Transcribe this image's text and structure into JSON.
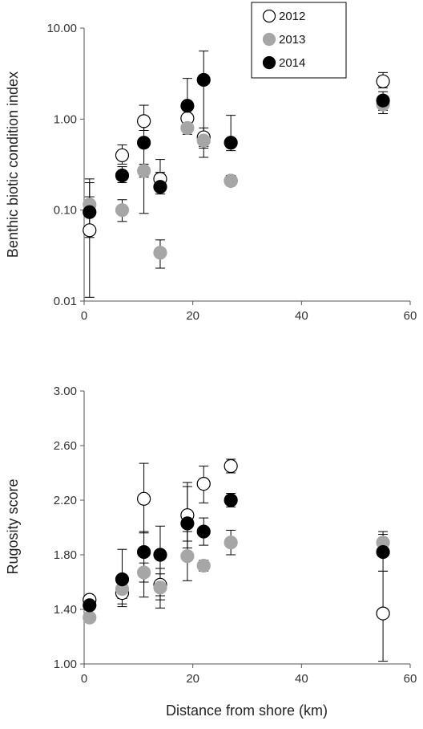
{
  "chart_data": [
    {
      "type": "scatter",
      "title": "",
      "xlabel": "",
      "ylabel": "Benthic biotic condition index",
      "xlim": [
        0,
        60
      ],
      "ylim": [
        0.01,
        10
      ],
      "yscale": "log",
      "xticks": [
        "0",
        "20",
        "40",
        "60"
      ],
      "yticks": [
        "0.01",
        "0.10",
        "1.00",
        "10.00"
      ],
      "legend": {
        "position": "top-right",
        "entries": [
          "2012",
          "2013",
          "2014"
        ]
      },
      "series": [
        {
          "name": "2012",
          "color": "#ffffff",
          "points": [
            {
              "x": 1,
              "y": 0.06,
              "lo": 0.011,
              "hi": 0.22
            },
            {
              "x": 7,
              "y": 0.4,
              "lo": 0.32,
              "hi": 0.52
            },
            {
              "x": 11,
              "y": 0.95,
              "lo": 0.75,
              "hi": 1.42
            },
            {
              "x": 14,
              "y": 0.22,
              "lo": 0.19,
              "hi": 0.26
            },
            {
              "x": 19,
              "y": 1.02,
              "lo": 0.82,
              "hi": 1.25
            },
            {
              "x": 22,
              "y": 0.63,
              "lo": 0.5,
              "hi": 0.8
            },
            {
              "x": 27,
              "y": 0.21,
              "lo": 0.19,
              "hi": 0.24
            },
            {
              "x": 55,
              "y": 2.6,
              "lo": 2.2,
              "hi": 3.25
            }
          ]
        },
        {
          "name": "2013",
          "color": "#a6a6a6",
          "points": [
            {
              "x": 1,
              "y": 0.115,
              "lo": 0.095,
              "hi": 0.14
            },
            {
              "x": 7,
              "y": 0.1,
              "lo": 0.075,
              "hi": 0.13
            },
            {
              "x": 11,
              "y": 0.27,
              "lo": 0.23,
              "hi": 0.32
            },
            {
              "x": 14,
              "y": 0.034,
              "lo": 0.023,
              "hi": 0.047
            },
            {
              "x": 19,
              "y": 0.8,
              "lo": 0.68,
              "hi": 0.95
            },
            {
              "x": 22,
              "y": 0.58,
              "lo": 0.48,
              "hi": 0.7
            },
            {
              "x": 27,
              "y": 0.21,
              "lo": 0.19,
              "hi": 0.24
            },
            {
              "x": 55,
              "y": 1.45,
              "lo": 1.25,
              "hi": 1.68
            }
          ]
        },
        {
          "name": "2014",
          "color": "#000000",
          "points": [
            {
              "x": 1,
              "y": 0.095,
              "lo": 0.05,
              "hi": 0.2
            },
            {
              "x": 7,
              "y": 0.24,
              "lo": 0.2,
              "hi": 0.3
            },
            {
              "x": 11,
              "y": 0.55,
              "lo": 0.092,
              "hi": 0.85
            },
            {
              "x": 14,
              "y": 0.18,
              "lo": 0.15,
              "hi": 0.36
            },
            {
              "x": 19,
              "y": 1.4,
              "lo": 1.0,
              "hi": 2.8
            },
            {
              "x": 22,
              "y": 2.7,
              "lo": 0.38,
              "hi": 5.6
            },
            {
              "x": 27,
              "y": 0.55,
              "lo": 0.45,
              "hi": 1.1
            },
            {
              "x": 55,
              "y": 1.6,
              "lo": 1.15,
              "hi": 2.0
            }
          ]
        }
      ]
    },
    {
      "type": "scatter",
      "title": "",
      "xlabel": "Distance from shore (km)",
      "ylabel": "Rugosity score",
      "xlim": [
        0,
        60
      ],
      "ylim": [
        1.0,
        3.0
      ],
      "yscale": "linear",
      "xticks": [
        "0",
        "20",
        "40",
        "60"
      ],
      "yticks": [
        "1.00",
        "1.40",
        "1.80",
        "2.20",
        "2.60",
        "3.00"
      ],
      "series": [
        {
          "name": "2012",
          "color": "#ffffff",
          "points": [
            {
              "x": 1,
              "y": 1.47,
              "lo": 1.44,
              "hi": 1.5
            },
            {
              "x": 7,
              "y": 1.52,
              "lo": 1.44,
              "hi": 1.6
            },
            {
              "x": 11,
              "y": 2.21,
              "lo": 1.96,
              "hi": 2.47
            },
            {
              "x": 14,
              "y": 1.58,
              "lo": 1.5,
              "hi": 1.66
            },
            {
              "x": 19,
              "y": 2.09,
              "lo": 1.85,
              "hi": 2.33
            },
            {
              "x": 22,
              "y": 2.32,
              "lo": 2.18,
              "hi": 2.45
            },
            {
              "x": 27,
              "y": 2.45,
              "lo": 2.4,
              "hi": 2.5
            },
            {
              "x": 55,
              "y": 1.37,
              "lo": 1.02,
              "hi": 1.68
            }
          ]
        },
        {
          "name": "2013",
          "color": "#a6a6a6",
          "points": [
            {
              "x": 1,
              "y": 1.34,
              "lo": 1.31,
              "hi": 1.37
            },
            {
              "x": 7,
              "y": 1.55,
              "lo": 1.48,
              "hi": 1.62
            },
            {
              "x": 11,
              "y": 1.67,
              "lo": 1.6,
              "hi": 1.74
            },
            {
              "x": 14,
              "y": 1.56,
              "lo": 1.41,
              "hi": 1.7
            },
            {
              "x": 19,
              "y": 1.79,
              "lo": 1.61,
              "hi": 1.97
            },
            {
              "x": 22,
              "y": 1.72,
              "lo": 1.68,
              "hi": 1.76
            },
            {
              "x": 27,
              "y": 1.89,
              "lo": 1.8,
              "hi": 1.98
            },
            {
              "x": 55,
              "y": 1.89,
              "lo": 1.8,
              "hi": 1.97
            }
          ]
        },
        {
          "name": "2014",
          "color": "#000000",
          "points": [
            {
              "x": 1,
              "y": 1.43,
              "lo": 1.4,
              "hi": 1.46
            },
            {
              "x": 7,
              "y": 1.62,
              "lo": 1.42,
              "hi": 1.84
            },
            {
              "x": 11,
              "y": 1.82,
              "lo": 1.49,
              "hi": 1.97
            },
            {
              "x": 14,
              "y": 1.8,
              "lo": 1.47,
              "hi": 2.01
            },
            {
              "x": 19,
              "y": 2.03,
              "lo": 1.9,
              "hi": 2.3
            },
            {
              "x": 22,
              "y": 1.97,
              "lo": 1.87,
              "hi": 2.07
            },
            {
              "x": 27,
              "y": 2.2,
              "lo": 2.15,
              "hi": 2.25
            },
            {
              "x": 55,
              "y": 1.82,
              "lo": 1.68,
              "hi": 1.95
            }
          ]
        }
      ]
    }
  ]
}
